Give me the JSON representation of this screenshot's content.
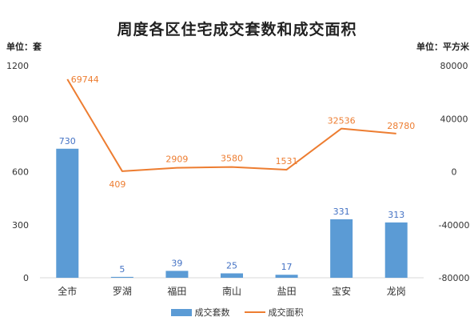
{
  "chart_data": {
    "type": "bar+line",
    "title": "周度各区住宅成交套数和成交面积",
    "y_left_unit": "单位：套",
    "y_right_unit": "单位：平方米",
    "categories": [
      "全市",
      "罗湖",
      "福田",
      "南山",
      "盐田",
      "宝安",
      "龙岗"
    ],
    "series": [
      {
        "name": "成交套数",
        "type": "bar",
        "axis": "left",
        "color": "#5b9bd5",
        "values": [
          730,
          5,
          39,
          25,
          17,
          331,
          313
        ]
      },
      {
        "name": "成交面积",
        "type": "line",
        "axis": "right",
        "color": "#ed7d31",
        "values": [
          69744,
          409,
          2909,
          3580,
          1531,
          32536,
          28780
        ]
      }
    ],
    "y_left": {
      "min": 0,
      "max": 1200,
      "ticks": [
        0,
        300,
        600,
        900,
        1200
      ]
    },
    "y_right": {
      "min": -80000,
      "max": 80000,
      "ticks": [
        -80000,
        -40000,
        0,
        40000,
        80000
      ]
    },
    "grid": false,
    "legend_position": "bottom"
  }
}
